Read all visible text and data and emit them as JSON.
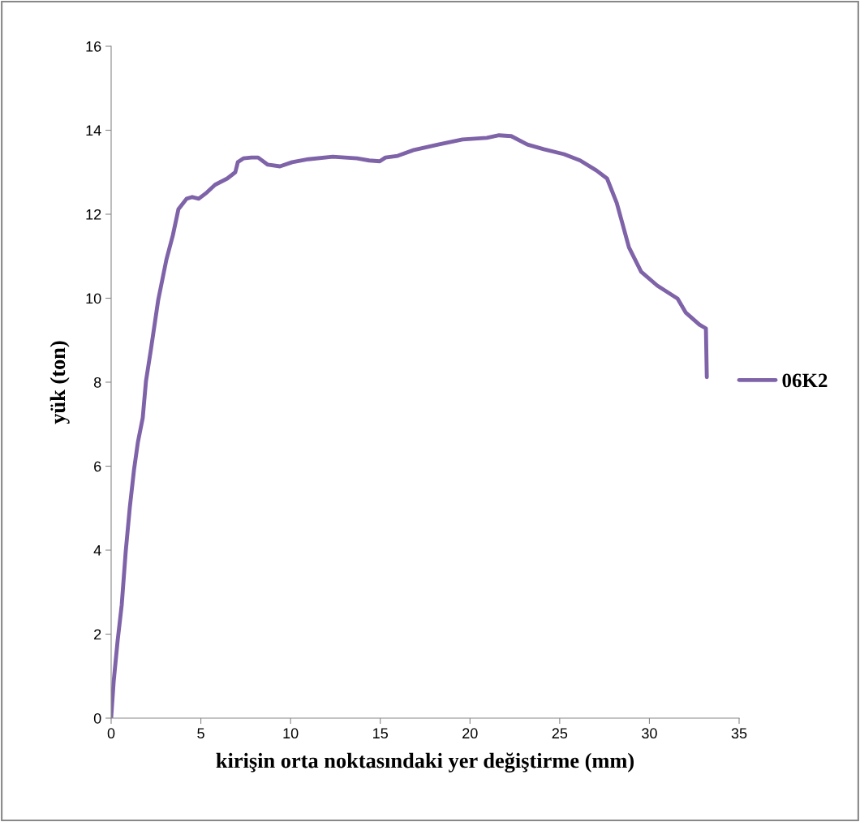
{
  "chart_data": {
    "type": "line",
    "xlabel": "kirişin orta noktasındaki yer değiştirme (mm)",
    "ylabel": "yük (ton)",
    "xlim": [
      0,
      35
    ],
    "xticks": [
      0,
      5,
      10,
      15,
      20,
      25,
      30,
      35
    ],
    "ylim": [
      0,
      16
    ],
    "yticks": [
      0,
      2,
      4,
      6,
      8,
      10,
      12,
      14,
      16
    ],
    "grid": false,
    "legend": "right",
    "marker": "none",
    "line_style": "solid",
    "series": [
      {
        "name": "06K2",
        "color": "#7f63a8",
        "x": [
          0,
          0.14,
          0.36,
          0.59,
          0.81,
          1.04,
          1.27,
          1.49,
          1.76,
          1.94,
          2.22,
          2.62,
          3.08,
          3.44,
          3.75,
          4.21,
          4.52,
          4.88,
          5.34,
          5.79,
          6.47,
          6.92,
          7.06,
          7.37,
          7.82,
          8.19,
          8.73,
          9.41,
          10.09,
          10.99,
          12.35,
          13.7,
          14.38,
          14.97,
          15.29,
          15.97,
          16.87,
          18.23,
          19.58,
          20.94,
          21.62,
          22.3,
          23.2,
          24.11,
          25.24,
          26.14,
          27.05,
          27.64,
          28.18,
          28.86,
          29.54,
          30.44,
          31.57,
          32.02,
          32.79,
          33.15,
          33.2
        ],
        "values": [
          0,
          0.87,
          1.84,
          2.7,
          3.96,
          5.02,
          5.9,
          6.57,
          7.15,
          8.02,
          8.79,
          9.95,
          10.92,
          11.5,
          12.12,
          12.37,
          12.41,
          12.37,
          12.52,
          12.7,
          12.85,
          13.0,
          13.24,
          13.33,
          13.35,
          13.35,
          13.18,
          13.14,
          13.24,
          13.31,
          13.37,
          13.33,
          13.28,
          13.26,
          13.35,
          13.39,
          13.53,
          13.66,
          13.78,
          13.82,
          13.88,
          13.86,
          13.66,
          13.55,
          13.43,
          13.28,
          13.04,
          12.85,
          12.27,
          11.21,
          10.63,
          10.3,
          9.99,
          9.66,
          9.37,
          9.28,
          8.12
        ]
      }
    ]
  }
}
